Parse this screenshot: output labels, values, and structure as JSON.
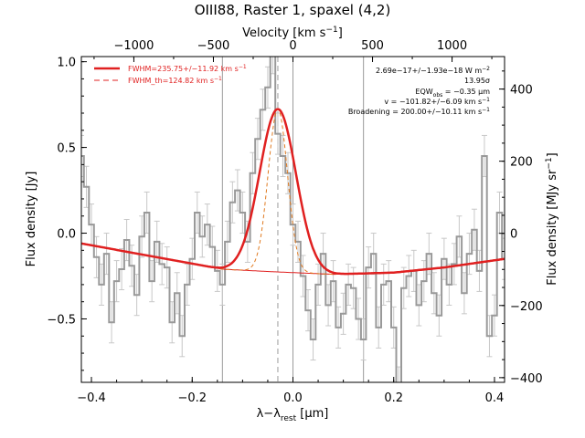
{
  "chart_data": {
    "type": "line",
    "title": "OIII88, Raster 1, spaxel (4,2)",
    "xlabel_pre": "λ−λ",
    "xlabel_sub": "rest",
    "xlabel_post": " [μm]",
    "ylabel_left": "Flux density [Jy]",
    "ylabel_right": "Flux density [MJy sr",
    "ylabel_right_sup": "−1",
    "ylabel_right_end": "]",
    "xlabel_top": "Velocity [km s",
    "xlabel_top_sup": "−1",
    "xlabel_top_end": "]",
    "xlim": [
      -0.42,
      0.42
    ],
    "ylim": [
      -0.87,
      1.03
    ],
    "ylim_right": [
      -413,
      490
    ],
    "velocity_lim": [
      -1330,
      1330
    ],
    "x_ticks": [
      -0.4,
      -0.2,
      0.0,
      0.2,
      0.4
    ],
    "x_tick_labels": [
      "−0.4",
      "−0.2",
      "0.0",
      "0.2",
      "0.4"
    ],
    "y_ticks": [
      -0.5,
      0.0,
      0.5,
      1.0
    ],
    "y_tick_labels": [
      "−0.5",
      "0.0",
      "0.5",
      "1.0"
    ],
    "y_right_ticks": [
      -400,
      -200,
      0,
      200,
      400
    ],
    "y_right_tick_labels": [
      "−400",
      "−200",
      "0",
      "200",
      "400"
    ],
    "v_ticks": [
      -1000,
      -500,
      0,
      500,
      1000
    ],
    "v_tick_labels": [
      "−1000",
      "−500",
      "0",
      "500",
      "1000"
    ],
    "vertical_lines": [
      -0.14,
      0.0,
      0.14
    ],
    "line_center": -0.03,
    "legend": [
      {
        "label": "FWHM=235.75+/−11.92 km s",
        "sup": "−1",
        "style": "solid",
        "color": "#e02020"
      },
      {
        "label": "FWHM_th=124.82 km s",
        "sup": "−1",
        "style": "dashed",
        "color": "#e02020"
      }
    ],
    "annotations": [
      {
        "text": "2.69e−17+/−1.93e−18 W m",
        "sup": "−2"
      },
      {
        "text": "13.95σ"
      },
      {
        "text": "EQW",
        "sub": "obs",
        "tail": " = −0.35 μm"
      },
      {
        "text": "v = −101.82+/−6.09 km s",
        "sup": "−1"
      },
      {
        "text": "Broadening = 200.00+/−10.11 km s",
        "sup": "−1"
      }
    ],
    "spectrum": {
      "name": "data",
      "x": [
        -0.42,
        -0.41,
        -0.4,
        -0.39,
        -0.38,
        -0.37,
        -0.36,
        -0.35,
        -0.34,
        -0.33,
        -0.32,
        -0.31,
        -0.3,
        -0.29,
        -0.28,
        -0.27,
        -0.26,
        -0.25,
        -0.24,
        -0.23,
        -0.22,
        -0.21,
        -0.2,
        -0.19,
        -0.18,
        -0.17,
        -0.16,
        -0.15,
        -0.14,
        -0.13,
        -0.12,
        -0.11,
        -0.1,
        -0.09,
        -0.08,
        -0.07,
        -0.06,
        -0.05,
        -0.04,
        -0.03,
        -0.02,
        -0.01,
        0.0,
        0.01,
        0.02,
        0.03,
        0.04,
        0.05,
        0.06,
        0.07,
        0.08,
        0.09,
        0.1,
        0.11,
        0.12,
        0.13,
        0.14,
        0.15,
        0.16,
        0.17,
        0.18,
        0.19,
        0.2,
        0.21,
        0.22,
        0.23,
        0.24,
        0.25,
        0.26,
        0.27,
        0.28,
        0.29,
        0.3,
        0.31,
        0.32,
        0.33,
        0.34,
        0.35,
        0.36,
        0.37,
        0.38,
        0.39,
        0.4,
        0.41,
        0.42
      ],
      "y": [
        0.45,
        0.27,
        0.05,
        -0.14,
        -0.3,
        -0.12,
        -0.52,
        -0.28,
        -0.21,
        -0.04,
        -0.19,
        -0.36,
        -0.02,
        0.12,
        -0.28,
        -0.05,
        -0.18,
        -0.2,
        -0.52,
        -0.35,
        -0.6,
        -0.3,
        -0.15,
        0.12,
        -0.02,
        0.05,
        -0.08,
        -0.22,
        -0.3,
        -0.05,
        0.18,
        0.25,
        0.12,
        -0.05,
        0.35,
        0.55,
        0.72,
        0.85,
        1.05,
        0.58,
        0.45,
        0.35,
        0.05,
        -0.05,
        -0.25,
        -0.45,
        -0.62,
        -0.3,
        -0.12,
        -0.42,
        -0.28,
        -0.55,
        -0.47,
        -0.3,
        -0.32,
        -0.5,
        -0.62,
        -0.2,
        -0.12,
        -0.55,
        -0.3,
        -0.28,
        -0.55,
        -0.9,
        -0.32,
        -0.25,
        -0.22,
        -0.42,
        -0.28,
        -0.12,
        -0.35,
        -0.48,
        -0.15,
        -0.3,
        -0.18,
        -0.02,
        -0.35,
        -0.12,
        0.02,
        -0.22,
        0.45,
        -0.6,
        -0.48,
        0.12,
        -0.15
      ],
      "error": 0.12,
      "color": "#999999"
    },
    "fit": {
      "name": "FWHM=235.75+/−11.92 km s−1",
      "model": "gaussian_on_quadratic_baseline",
      "amplitude": 0.95,
      "center": -0.03,
      "fwhm": 0.085,
      "thermal_fwhm": 0.045,
      "baseline": [
        [
          -0.42,
          -0.06
        ],
        [
          -0.14,
          -0.21
        ],
        [
          -0.04,
          -0.225
        ],
        [
          0.08,
          -0.24
        ],
        [
          0.2,
          -0.23
        ],
        [
          0.3,
          -0.2
        ],
        [
          0.42,
          -0.15
        ]
      ]
    }
  }
}
